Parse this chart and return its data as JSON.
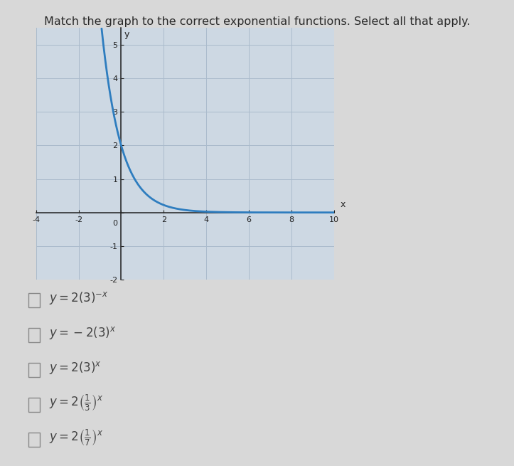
{
  "title": "Match the graph to the correct exponential functions. Select all that apply.",
  "title_fontsize": 11.5,
  "title_color": "#2a2a2a",
  "bg_color": "#d8d8d8",
  "graph_bg": "#cdd8e3",
  "graph_border_color": "#999999",
  "curve_color": "#2e7dbf",
  "curve_linewidth": 2.0,
  "xlim": [
    -4,
    10
  ],
  "ylim": [
    -2,
    5.5
  ],
  "xticks": [
    -4,
    -2,
    0,
    2,
    4,
    6,
    8,
    10
  ],
  "yticks": [
    -2,
    -1,
    0,
    1,
    2,
    3,
    4,
    5
  ],
  "xlabel": "x",
  "ylabel": "y",
  "axis_color": "#222222",
  "grid_color": "#aabbcc",
  "grid_linewidth": 0.7,
  "tick_fontsize": 8,
  "option_fontsize": 12,
  "option_color": "#444444",
  "checkbox_color": "#888888",
  "option_labels_latex": [
    "$y = 2(3)^{-x}$",
    "$y = -2(3)^{x}$",
    "$y = 2(3)^{x}$",
    "$y = 2\\left(\\frac{1}{3}\\right)^{x}$",
    "$y = 2\\left(\\frac{1}{7}\\right)^{x}$"
  ]
}
